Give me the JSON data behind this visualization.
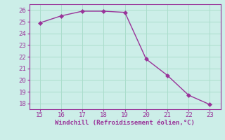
{
  "x": [
    15,
    16,
    17,
    18,
    19,
    20,
    21,
    22,
    23
  ],
  "y": [
    24.9,
    25.5,
    25.9,
    25.9,
    25.8,
    21.8,
    20.4,
    18.7,
    17.9
  ],
  "line_color": "#993399",
  "marker_color": "#993399",
  "bg_color": "#cceee8",
  "grid_color": "#aaddcc",
  "xlabel": "Windchill (Refroidissement éolien,°C)",
  "xlabel_color": "#993399",
  "tick_color": "#993399",
  "spine_color": "#993399",
  "xlim": [
    14.5,
    23.5
  ],
  "ylim": [
    17.5,
    26.5
  ],
  "xticks": [
    15,
    16,
    17,
    18,
    19,
    20,
    21,
    22,
    23
  ],
  "yticks": [
    18,
    19,
    20,
    21,
    22,
    23,
    24,
    25,
    26
  ],
  "marker_size": 3,
  "line_width": 1.0
}
